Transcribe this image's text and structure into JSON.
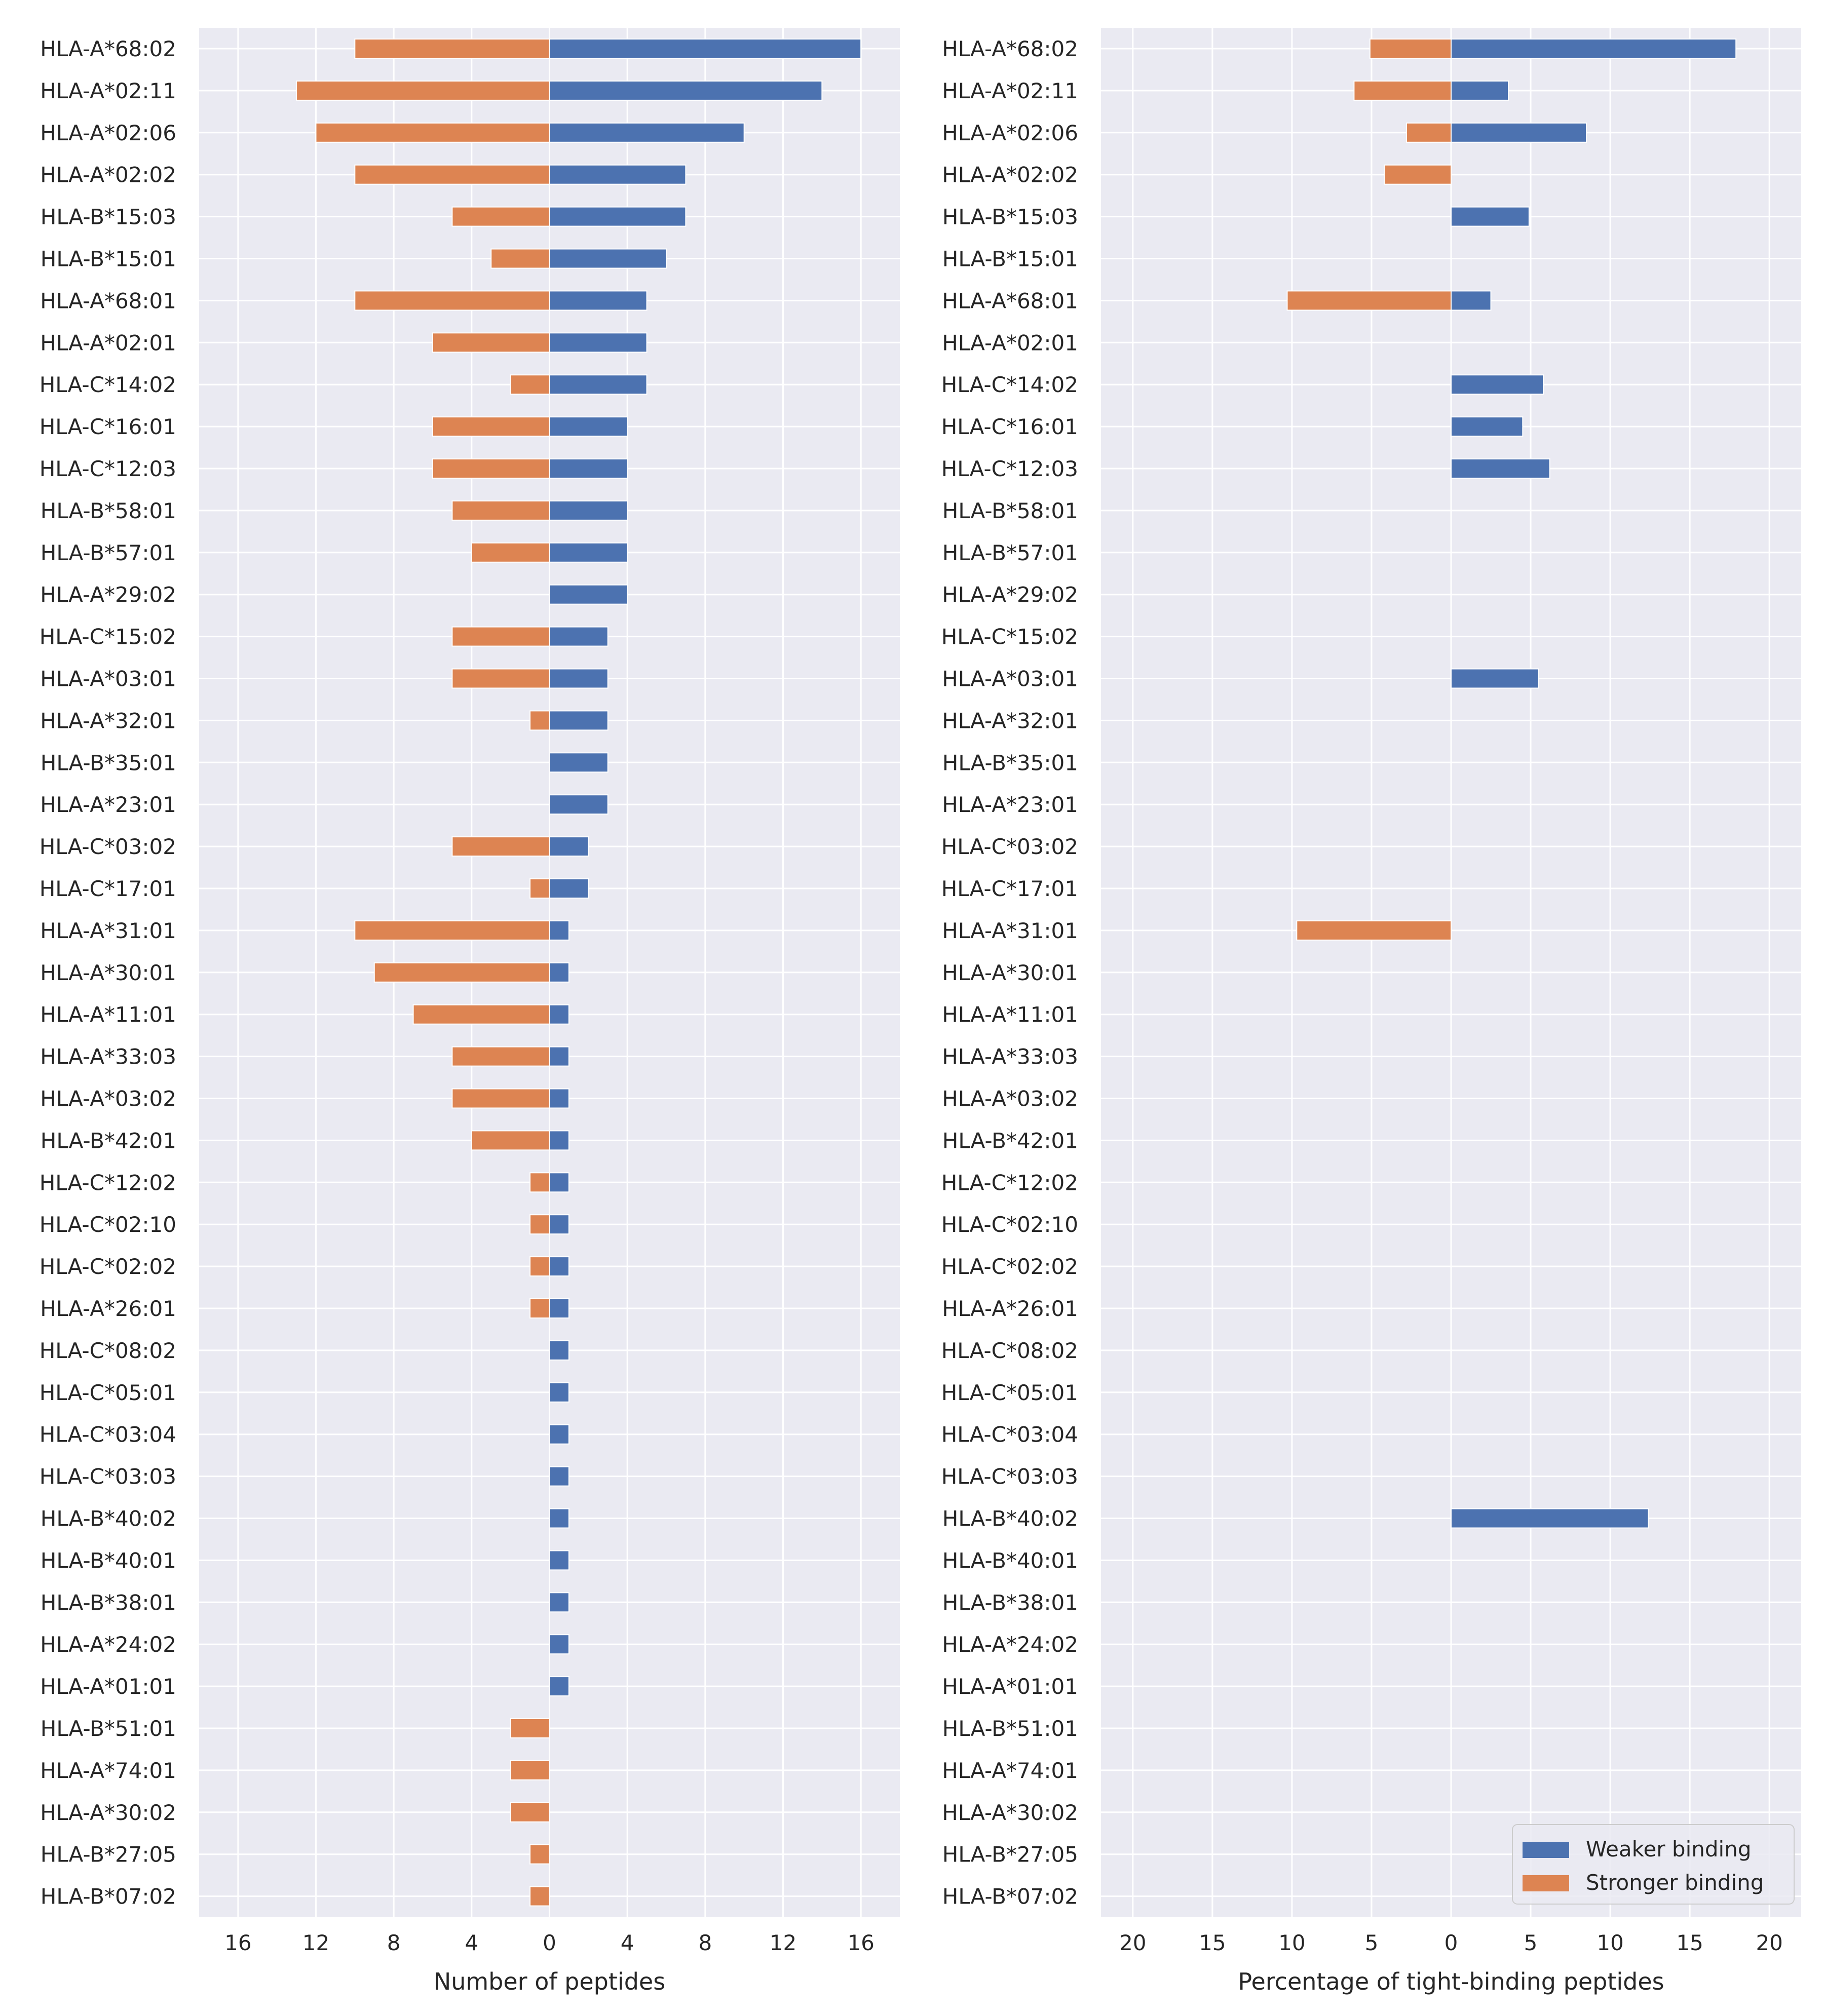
{
  "chart_data": [
    {
      "type": "bar",
      "orientation": "horizontal",
      "xlabel": "Number of peptides",
      "xlim": [
        -18,
        18
      ],
      "xticks": [
        -16,
        -12,
        -8,
        -4,
        0,
        4,
        8,
        12,
        16
      ],
      "xtick_labels": [
        "16",
        "12",
        "8",
        "4",
        "0",
        "4",
        "8",
        "12",
        "16"
      ],
      "grid": true,
      "categories": [
        "HLA-A*68:02",
        "HLA-A*02:11",
        "HLA-A*02:06",
        "HLA-A*02:02",
        "HLA-B*15:03",
        "HLA-B*15:01",
        "HLA-A*68:01",
        "HLA-A*02:01",
        "HLA-C*14:02",
        "HLA-C*16:01",
        "HLA-C*12:03",
        "HLA-B*58:01",
        "HLA-B*57:01",
        "HLA-A*29:02",
        "HLA-C*15:02",
        "HLA-A*03:01",
        "HLA-A*32:01",
        "HLA-B*35:01",
        "HLA-A*23:01",
        "HLA-C*03:02",
        "HLA-C*17:01",
        "HLA-A*31:01",
        "HLA-A*30:01",
        "HLA-A*11:01",
        "HLA-A*33:03",
        "HLA-A*03:02",
        "HLA-B*42:01",
        "HLA-C*12:02",
        "HLA-C*02:10",
        "HLA-C*02:02",
        "HLA-A*26:01",
        "HLA-C*08:02",
        "HLA-C*05:01",
        "HLA-C*03:04",
        "HLA-C*03:03",
        "HLA-B*40:02",
        "HLA-B*40:01",
        "HLA-B*38:01",
        "HLA-A*24:02",
        "HLA-A*01:01",
        "HLA-B*51:01",
        "HLA-A*74:01",
        "HLA-A*30:02",
        "HLA-B*27:05",
        "HLA-B*07:02"
      ],
      "series": [
        {
          "name": "Weaker binding",
          "color": "#4c72b0",
          "values": [
            16,
            14,
            10,
            7,
            7,
            6,
            5,
            5,
            5,
            4,
            4,
            4,
            4,
            4,
            3,
            3,
            3,
            3,
            3,
            2,
            2,
            1,
            1,
            1,
            1,
            1,
            1,
            1,
            1,
            1,
            1,
            1,
            1,
            1,
            1,
            1,
            1,
            1,
            1,
            1,
            0,
            0,
            0,
            0,
            0
          ]
        },
        {
          "name": "Stronger binding",
          "color": "#dd8452",
          "values": [
            -10,
            -13,
            -12,
            -10,
            -5,
            -3,
            -10,
            -6,
            -2,
            -6,
            -6,
            -5,
            -4,
            0,
            -5,
            -5,
            -1,
            0,
            0,
            -5,
            -1,
            -10,
            -9,
            -7,
            -5,
            -5,
            -4,
            -1,
            -1,
            -1,
            -1,
            0,
            0,
            0,
            0,
            0,
            0,
            0,
            0,
            0,
            -2,
            -2,
            -2,
            -1,
            -1
          ]
        }
      ]
    },
    {
      "type": "bar",
      "orientation": "horizontal",
      "xlabel": "Percentage of tight-binding peptides",
      "xlim": [
        -22,
        22
      ],
      "xticks": [
        -20,
        -15,
        -10,
        -5,
        0,
        5,
        10,
        15,
        20
      ],
      "xtick_labels": [
        "20",
        "15",
        "10",
        "5",
        "0",
        "5",
        "10",
        "15",
        "20"
      ],
      "grid": true,
      "legend_position": "bottom-right",
      "categories": [
        "HLA-A*68:02",
        "HLA-A*02:11",
        "HLA-A*02:06",
        "HLA-A*02:02",
        "HLA-B*15:03",
        "HLA-B*15:01",
        "HLA-A*68:01",
        "HLA-A*02:01",
        "HLA-C*14:02",
        "HLA-C*16:01",
        "HLA-C*12:03",
        "HLA-B*58:01",
        "HLA-B*57:01",
        "HLA-A*29:02",
        "HLA-C*15:02",
        "HLA-A*03:01",
        "HLA-A*32:01",
        "HLA-B*35:01",
        "HLA-A*23:01",
        "HLA-C*03:02",
        "HLA-C*17:01",
        "HLA-A*31:01",
        "HLA-A*30:01",
        "HLA-A*11:01",
        "HLA-A*33:03",
        "HLA-A*03:02",
        "HLA-B*42:01",
        "HLA-C*12:02",
        "HLA-C*02:10",
        "HLA-C*02:02",
        "HLA-A*26:01",
        "HLA-C*08:02",
        "HLA-C*05:01",
        "HLA-C*03:04",
        "HLA-C*03:03",
        "HLA-B*40:02",
        "HLA-B*40:01",
        "HLA-B*38:01",
        "HLA-A*24:02",
        "HLA-A*01:01",
        "HLA-B*51:01",
        "HLA-A*74:01",
        "HLA-A*30:02",
        "HLA-B*27:05",
        "HLA-B*07:02"
      ],
      "series": [
        {
          "name": "Weaker binding",
          "color": "#4c72b0",
          "values": [
            17.9,
            3.6,
            8.5,
            0,
            4.9,
            0,
            2.5,
            0,
            5.8,
            4.5,
            6.2,
            0,
            0,
            0,
            0,
            5.5,
            0,
            0,
            0,
            0,
            0,
            0,
            0,
            0,
            0,
            0,
            0,
            0,
            0,
            0,
            0,
            0,
            0,
            0,
            0,
            12.4,
            0,
            0,
            0,
            0,
            0,
            0,
            0,
            0,
            0
          ]
        },
        {
          "name": "Stronger binding",
          "color": "#dd8452",
          "values": [
            -5.1,
            -6.1,
            -2.8,
            -4.2,
            0,
            0,
            -10.3,
            0,
            0,
            0,
            0,
            0,
            0,
            0,
            0,
            0,
            0,
            0,
            0,
            0,
            0,
            -9.7,
            0,
            0,
            0,
            0,
            0,
            0,
            0,
            0,
            0,
            0,
            0,
            0,
            0,
            0,
            0,
            0,
            0,
            0,
            0,
            0,
            0,
            0,
            0
          ]
        }
      ]
    }
  ],
  "legend": {
    "entries": [
      {
        "label": "Weaker binding",
        "color": "#4c72b0"
      },
      {
        "label": "Stronger binding",
        "color": "#dd8452"
      }
    ]
  }
}
